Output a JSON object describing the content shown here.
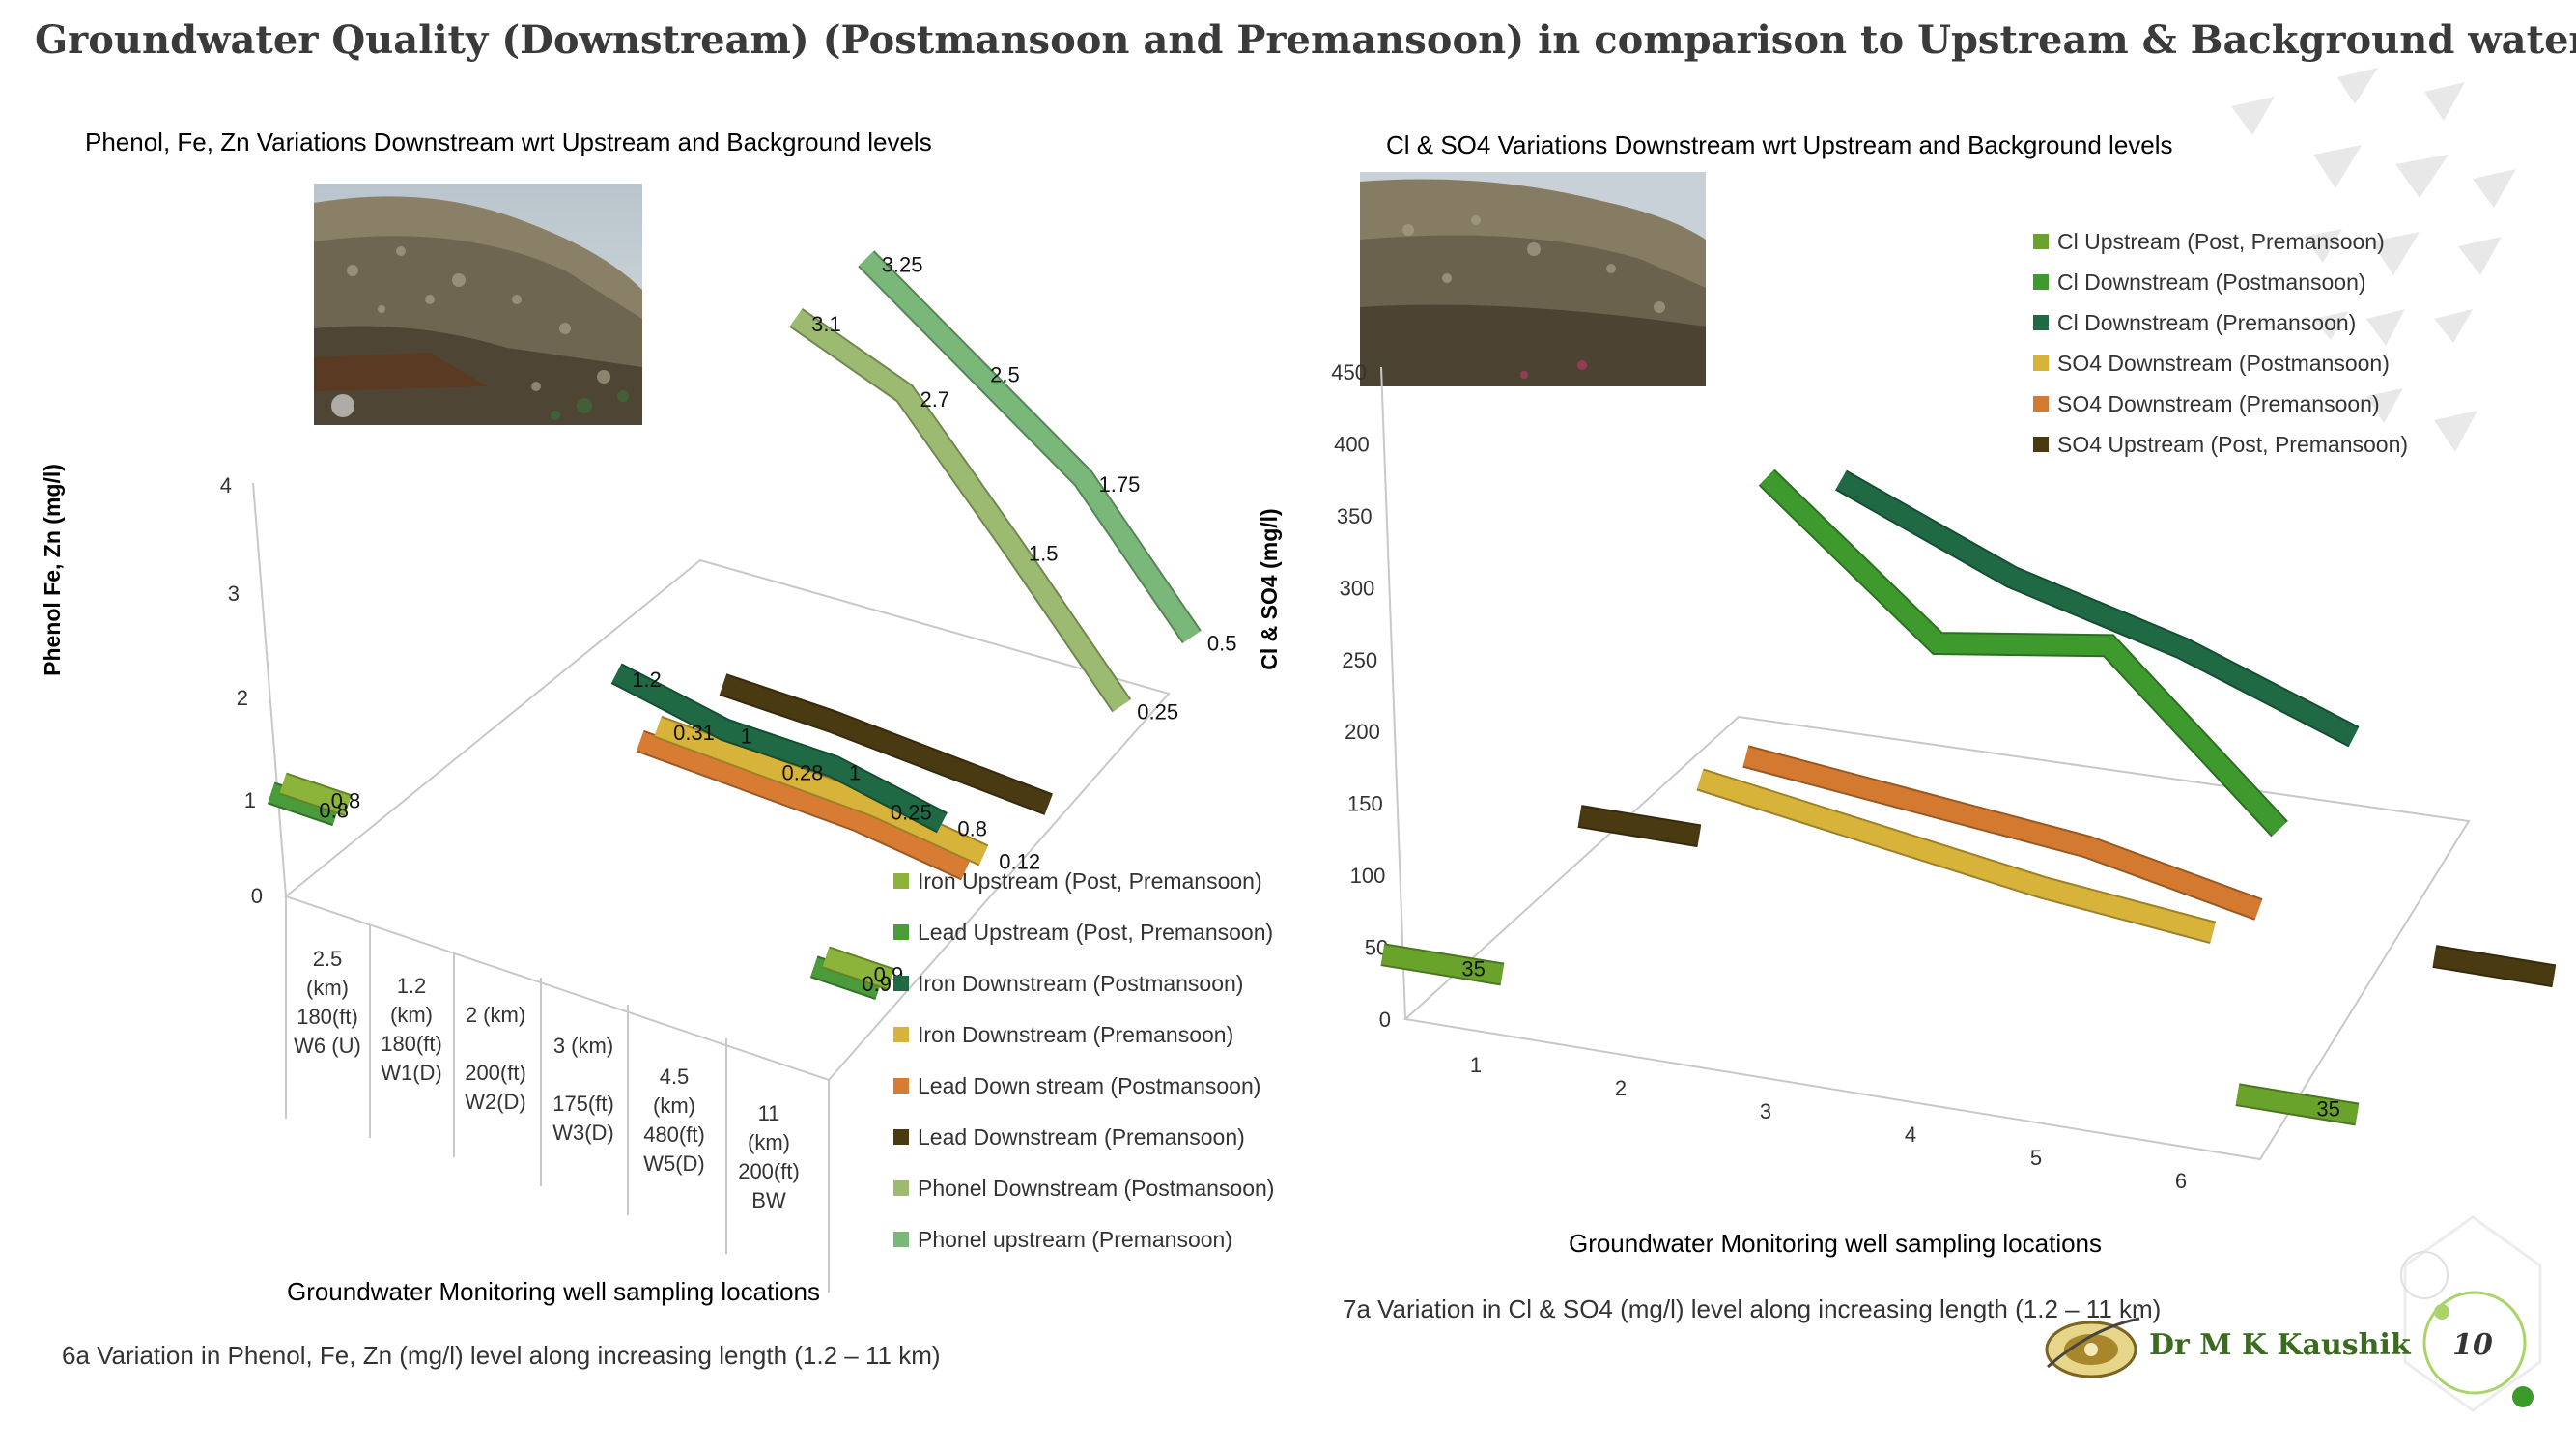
{
  "slide": {
    "title": "Groundwater Quality (Downstream) (Postmansoon and Premansoon) in comparison to Upstream &  Background water",
    "author": "Dr M K Kaushik",
    "page_number": "10",
    "caption_left": "6a   Variation in Phenol, Fe, Zn (mg/l)  level along increasing length (1.2 – 11 km)",
    "caption_right": "7a   Variation in Cl & SO4 (mg/l)  level along increasing length (1.2 – 11 km)"
  },
  "colors": {
    "iron_up": "#8cb43a",
    "lead_up": "#4a9c3a",
    "iron_down_post": "#1f6a45",
    "iron_down_pre": "#d8b33a",
    "lead_down_post": "#d97c33",
    "lead_down_pre": "#4a3a12",
    "phenol_down_post": "#9cbb70",
    "phenol_up_pre": "#7ab87a",
    "cl_up": "#6aa32c",
    "cl_down_post": "#3f9a2e",
    "cl_down_pre": "#1f6a45",
    "so4_down_post": "#d8b33a",
    "so4_down_pre": "#d37a30",
    "so4_up": "#4a3a12"
  },
  "chart_data": [
    {
      "type": "line",
      "style": "3d-ribbon",
      "title": "Phenol, Fe, Zn Variations Downstream wrt Upstream and Background levels",
      "ylabel": "Phenol Fe, Zn (mg/l)",
      "xlabel": "Groundwater Monitoring well sampling locations",
      "ylim": [
        0,
        4
      ],
      "yticks": [
        "0",
        "1",
        "2",
        "3",
        "4"
      ],
      "categories": [
        [
          "2.5",
          "(km)",
          "180(ft)",
          "W6 (U)"
        ],
        [
          "1.2",
          "(km)",
          "180(ft)",
          "W1(D)"
        ],
        [
          "2 (km)",
          "200(ft)",
          "W2(D)"
        ],
        [
          "3 (km)",
          "175(ft)",
          "W3(D)"
        ],
        [
          "4.5",
          "(km)",
          "480(ft)",
          "W5(D)"
        ],
        [
          "11",
          "(km)",
          "200(ft)",
          "BW"
        ]
      ],
      "series": [
        {
          "name": "Iron Upstream (Post, Premansoon)",
          "values": [
            0.8,
            null,
            null,
            null,
            null,
            0.9
          ],
          "labels": [
            "0.8",
            "",
            "",
            "",
            "",
            "0.9"
          ]
        },
        {
          "name": "Lead Upstream (Post, Premansoon)",
          "values": [
            0.8,
            null,
            null,
            null,
            null,
            0.9
          ],
          "labels": [
            "0.8",
            "",
            "",
            "",
            "",
            "0.9"
          ]
        },
        {
          "name": "Iron Downstream (Postmansoon)",
          "values": [
            null,
            1.2,
            1,
            1,
            0.8,
            null
          ],
          "labels": [
            "",
            "1.2",
            "1",
            "1",
            "0.8",
            ""
          ]
        },
        {
          "name": "Iron Downstream (Premansoon)",
          "values": [
            null,
            0.31,
            0.28,
            0.25,
            0.12,
            null
          ],
          "labels": [
            "",
            "0.31",
            "0.28",
            "0.25",
            "0.12",
            ""
          ]
        },
        {
          "name": "Lead Down stream (Postmansoon)",
          "values": [
            null,
            0.31,
            0.28,
            0.25,
            0.12,
            null
          ],
          "labels": [
            "",
            "",
            "",
            "",
            "",
            ""
          ]
        },
        {
          "name": "Lead Downstream (Premansoon)",
          "values": [
            null,
            0.2,
            0.2,
            0.15,
            0.1,
            null
          ],
          "labels": [
            "",
            "",
            "",
            "",
            "",
            ""
          ]
        },
        {
          "name": "Phonel Downstream (Postmansoon)",
          "values": [
            null,
            3.1,
            2.7,
            1.5,
            0.25,
            null
          ],
          "labels": [
            "",
            "3.1",
            "2.7",
            "1.5",
            "0.25",
            ""
          ]
        },
        {
          "name": "Phonel upstream (Premansoon)",
          "values": [
            null,
            3.25,
            2.5,
            1.75,
            0.5,
            null
          ],
          "labels": [
            "",
            "3.25",
            "2.5",
            "1.75",
            "0.5",
            ""
          ]
        }
      ],
      "legend_position": "bottom-right"
    },
    {
      "type": "line",
      "style": "3d-ribbon",
      "title": "Cl & SO4 Variations Downstream wrt Upstream and Background levels",
      "ylabel": "Cl & SO4 (mg/l)",
      "xlabel": "Groundwater Monitoring well sampling locations",
      "ylim": [
        0,
        450
      ],
      "yticks": [
        "0",
        "50",
        "100",
        "150",
        "200",
        "250",
        "300",
        "350",
        "400",
        "450"
      ],
      "categories": [
        "1",
        "2",
        "3",
        "4",
        "5",
        "6"
      ],
      "series": [
        {
          "name": "Cl Upstream (Post, Premansoon)",
          "values": [
            35,
            null,
            null,
            null,
            null,
            35
          ],
          "labels": [
            "35",
            "",
            "",
            "",
            "",
            "35"
          ]
        },
        {
          "name": "Cl Downstream (Postmansoon)",
          "values": [
            null,
            460,
            300,
            330,
            150,
            null
          ],
          "labels": [
            "",
            "",
            "",
            "",
            "",
            ""
          ]
        },
        {
          "name": "Cl Downstream (Premansoon)",
          "values": [
            null,
            400,
            320,
            270,
            200,
            null
          ],
          "labels": [
            "",
            "",
            "",
            "",
            "",
            ""
          ]
        },
        {
          "name": "SO4 Downstream (Postmansoon)",
          "values": [
            null,
            180,
            150,
            120,
            100,
            null
          ],
          "labels": [
            "",
            "",
            "",
            "",
            "",
            ""
          ]
        },
        {
          "name": "SO4 Downstream (Premansoon)",
          "values": [
            null,
            180,
            160,
            140,
            100,
            null
          ],
          "labels": [
            "",
            "",
            "",
            "",
            "",
            ""
          ]
        },
        {
          "name": "SO4 Upstream (Post, Premansoon)",
          "values": [
            20,
            null,
            null,
            null,
            null,
            20
          ],
          "labels": [
            "",
            "",
            "",
            "",
            "",
            ""
          ]
        }
      ],
      "legend_position": "top-right"
    }
  ]
}
